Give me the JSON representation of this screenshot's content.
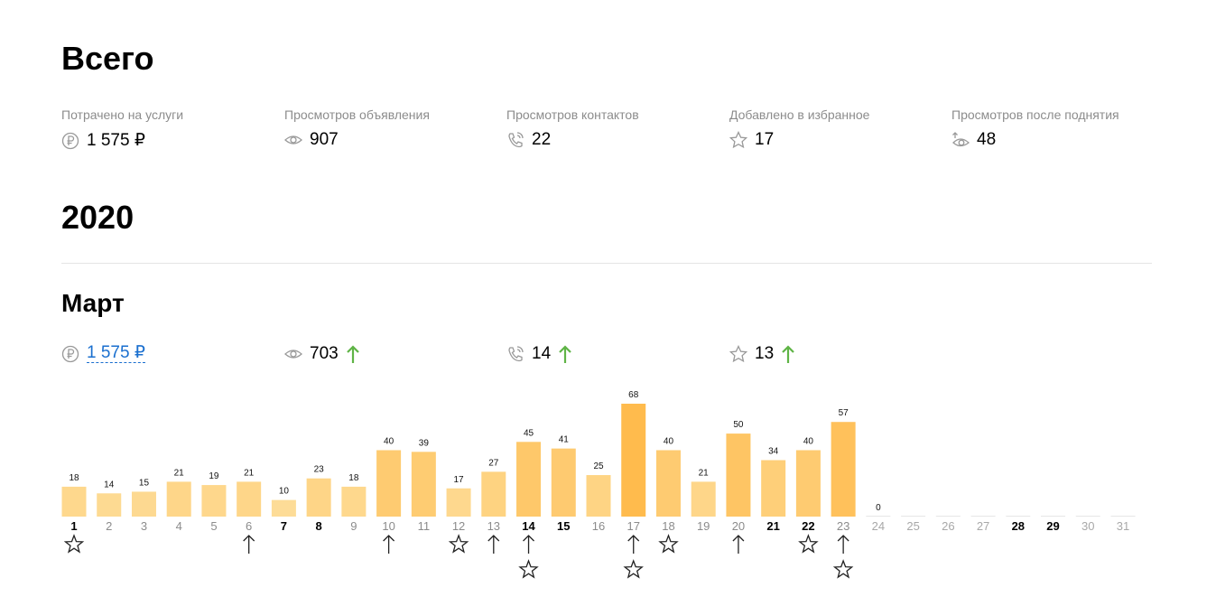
{
  "summary": {
    "title": "Всего",
    "items": [
      {
        "label": "Потрачено на услуги",
        "value": "1 575 ₽"
      },
      {
        "label": "Просмотров объявления",
        "value": "907"
      },
      {
        "label": "Просмотров контактов",
        "value": "22"
      },
      {
        "label": "Добавлено в избранное",
        "value": "17"
      },
      {
        "label": "Просмотров после поднятия",
        "value": "48"
      }
    ]
  },
  "year": "2020",
  "month": {
    "title": "Март",
    "items": [
      {
        "value": "1 575 ₽"
      },
      {
        "value": "703"
      },
      {
        "value": "14"
      },
      {
        "value": "13"
      }
    ]
  },
  "chart_data": {
    "type": "bar",
    "categories": [
      "1",
      "2",
      "3",
      "4",
      "5",
      "6",
      "7",
      "8",
      "9",
      "10",
      "11",
      "12",
      "13",
      "14",
      "15",
      "16",
      "17",
      "18",
      "19",
      "20",
      "21",
      "22",
      "23",
      "24",
      "25",
      "26",
      "27",
      "28",
      "29",
      "30",
      "31"
    ],
    "values": [
      18,
      14,
      15,
      21,
      19,
      21,
      10,
      23,
      18,
      40,
      39,
      17,
      27,
      45,
      41,
      25,
      68,
      40,
      21,
      50,
      34,
      40,
      57,
      0,
      null,
      null,
      null,
      null,
      null,
      null,
      null
    ],
    "bold_categories": [
      "1",
      "7",
      "8",
      "14",
      "15",
      "21",
      "22",
      "28",
      "29"
    ],
    "raised_on": [
      "6",
      "10",
      "13",
      "14",
      "17",
      "20",
      "23"
    ],
    "favorited_on": [
      "1",
      "12",
      "14",
      "17",
      "18",
      "22",
      "23"
    ]
  }
}
